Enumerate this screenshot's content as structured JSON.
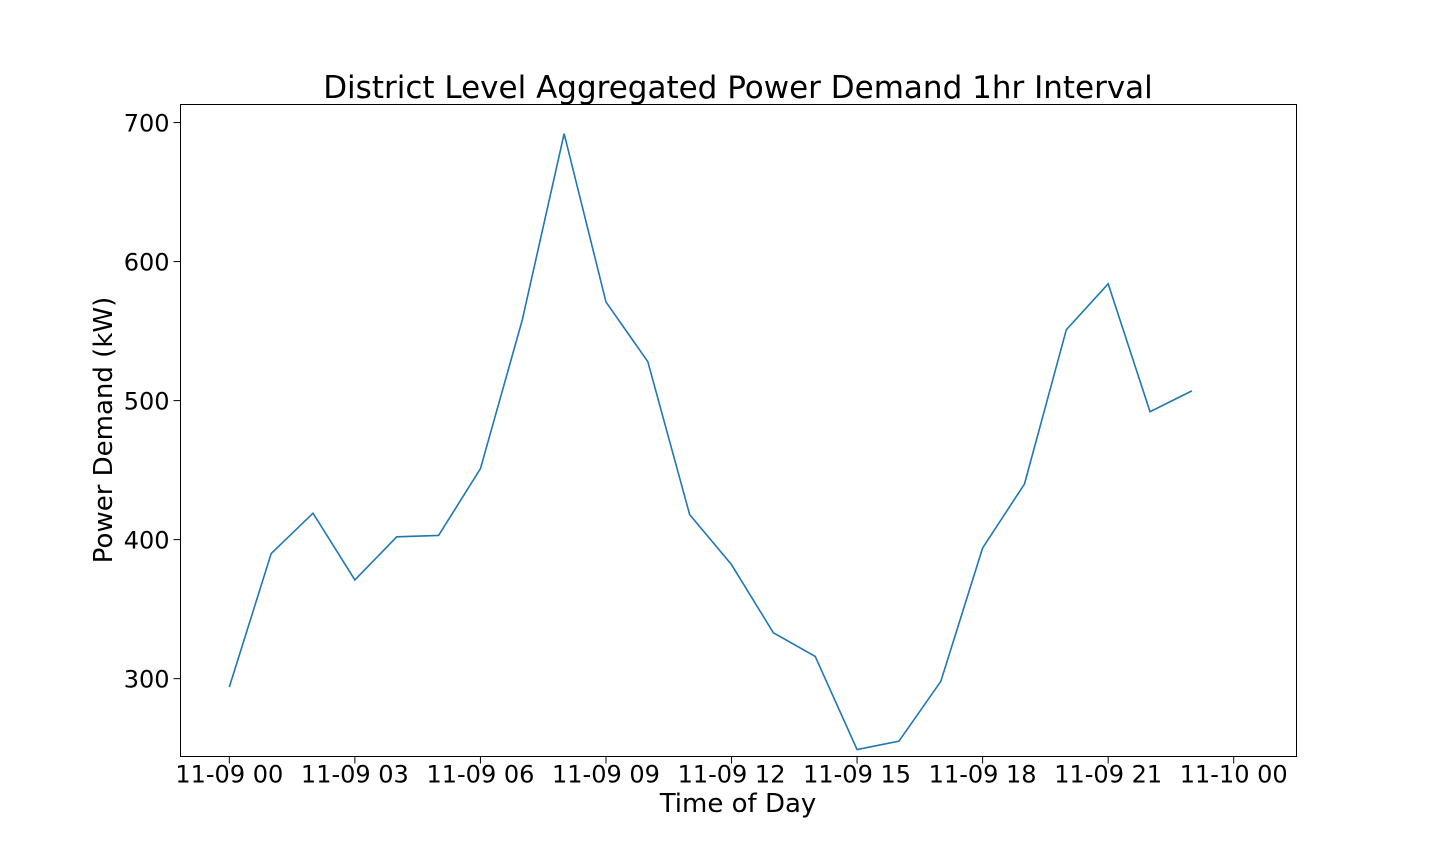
{
  "chart_data": {
    "type": "line",
    "title": "District Level Aggregated Power Demand 1hr Interval",
    "xlabel": "Time of Day",
    "ylabel": "Power Demand (kW)",
    "xlim": [
      "11-08 22:50",
      "11-10 01:30"
    ],
    "ylim": [
      244,
      713
    ],
    "grid": false,
    "x_ticks": [
      "11-09 00",
      "11-09 03",
      "11-09 06",
      "11-09 09",
      "11-09 12",
      "11-09 15",
      "11-09 18",
      "11-09 21",
      "11-10 00"
    ],
    "y_ticks": [
      300,
      400,
      500,
      600,
      700
    ],
    "series": [
      {
        "color": "#1f77b4",
        "x": [
          "11-09 00",
          "11-09 01",
          "11-09 02",
          "11-09 03",
          "11-09 04",
          "11-09 05",
          "11-09 06",
          "11-09 07",
          "11-09 08",
          "11-09 09",
          "11-09 10",
          "11-09 11",
          "11-09 12",
          "11-09 13",
          "11-09 14",
          "11-09 15",
          "11-09 16",
          "11-09 17",
          "11-09 18",
          "11-09 19",
          "11-09 20",
          "11-09 21",
          "11-09 22",
          "11-09 23"
        ],
        "values": [
          294,
          390,
          419,
          371,
          402,
          403,
          451,
          558,
          692,
          571,
          528,
          418,
          382,
          333,
          316,
          249,
          255,
          298,
          394,
          440,
          551,
          584,
          492,
          507
        ]
      }
    ]
  }
}
